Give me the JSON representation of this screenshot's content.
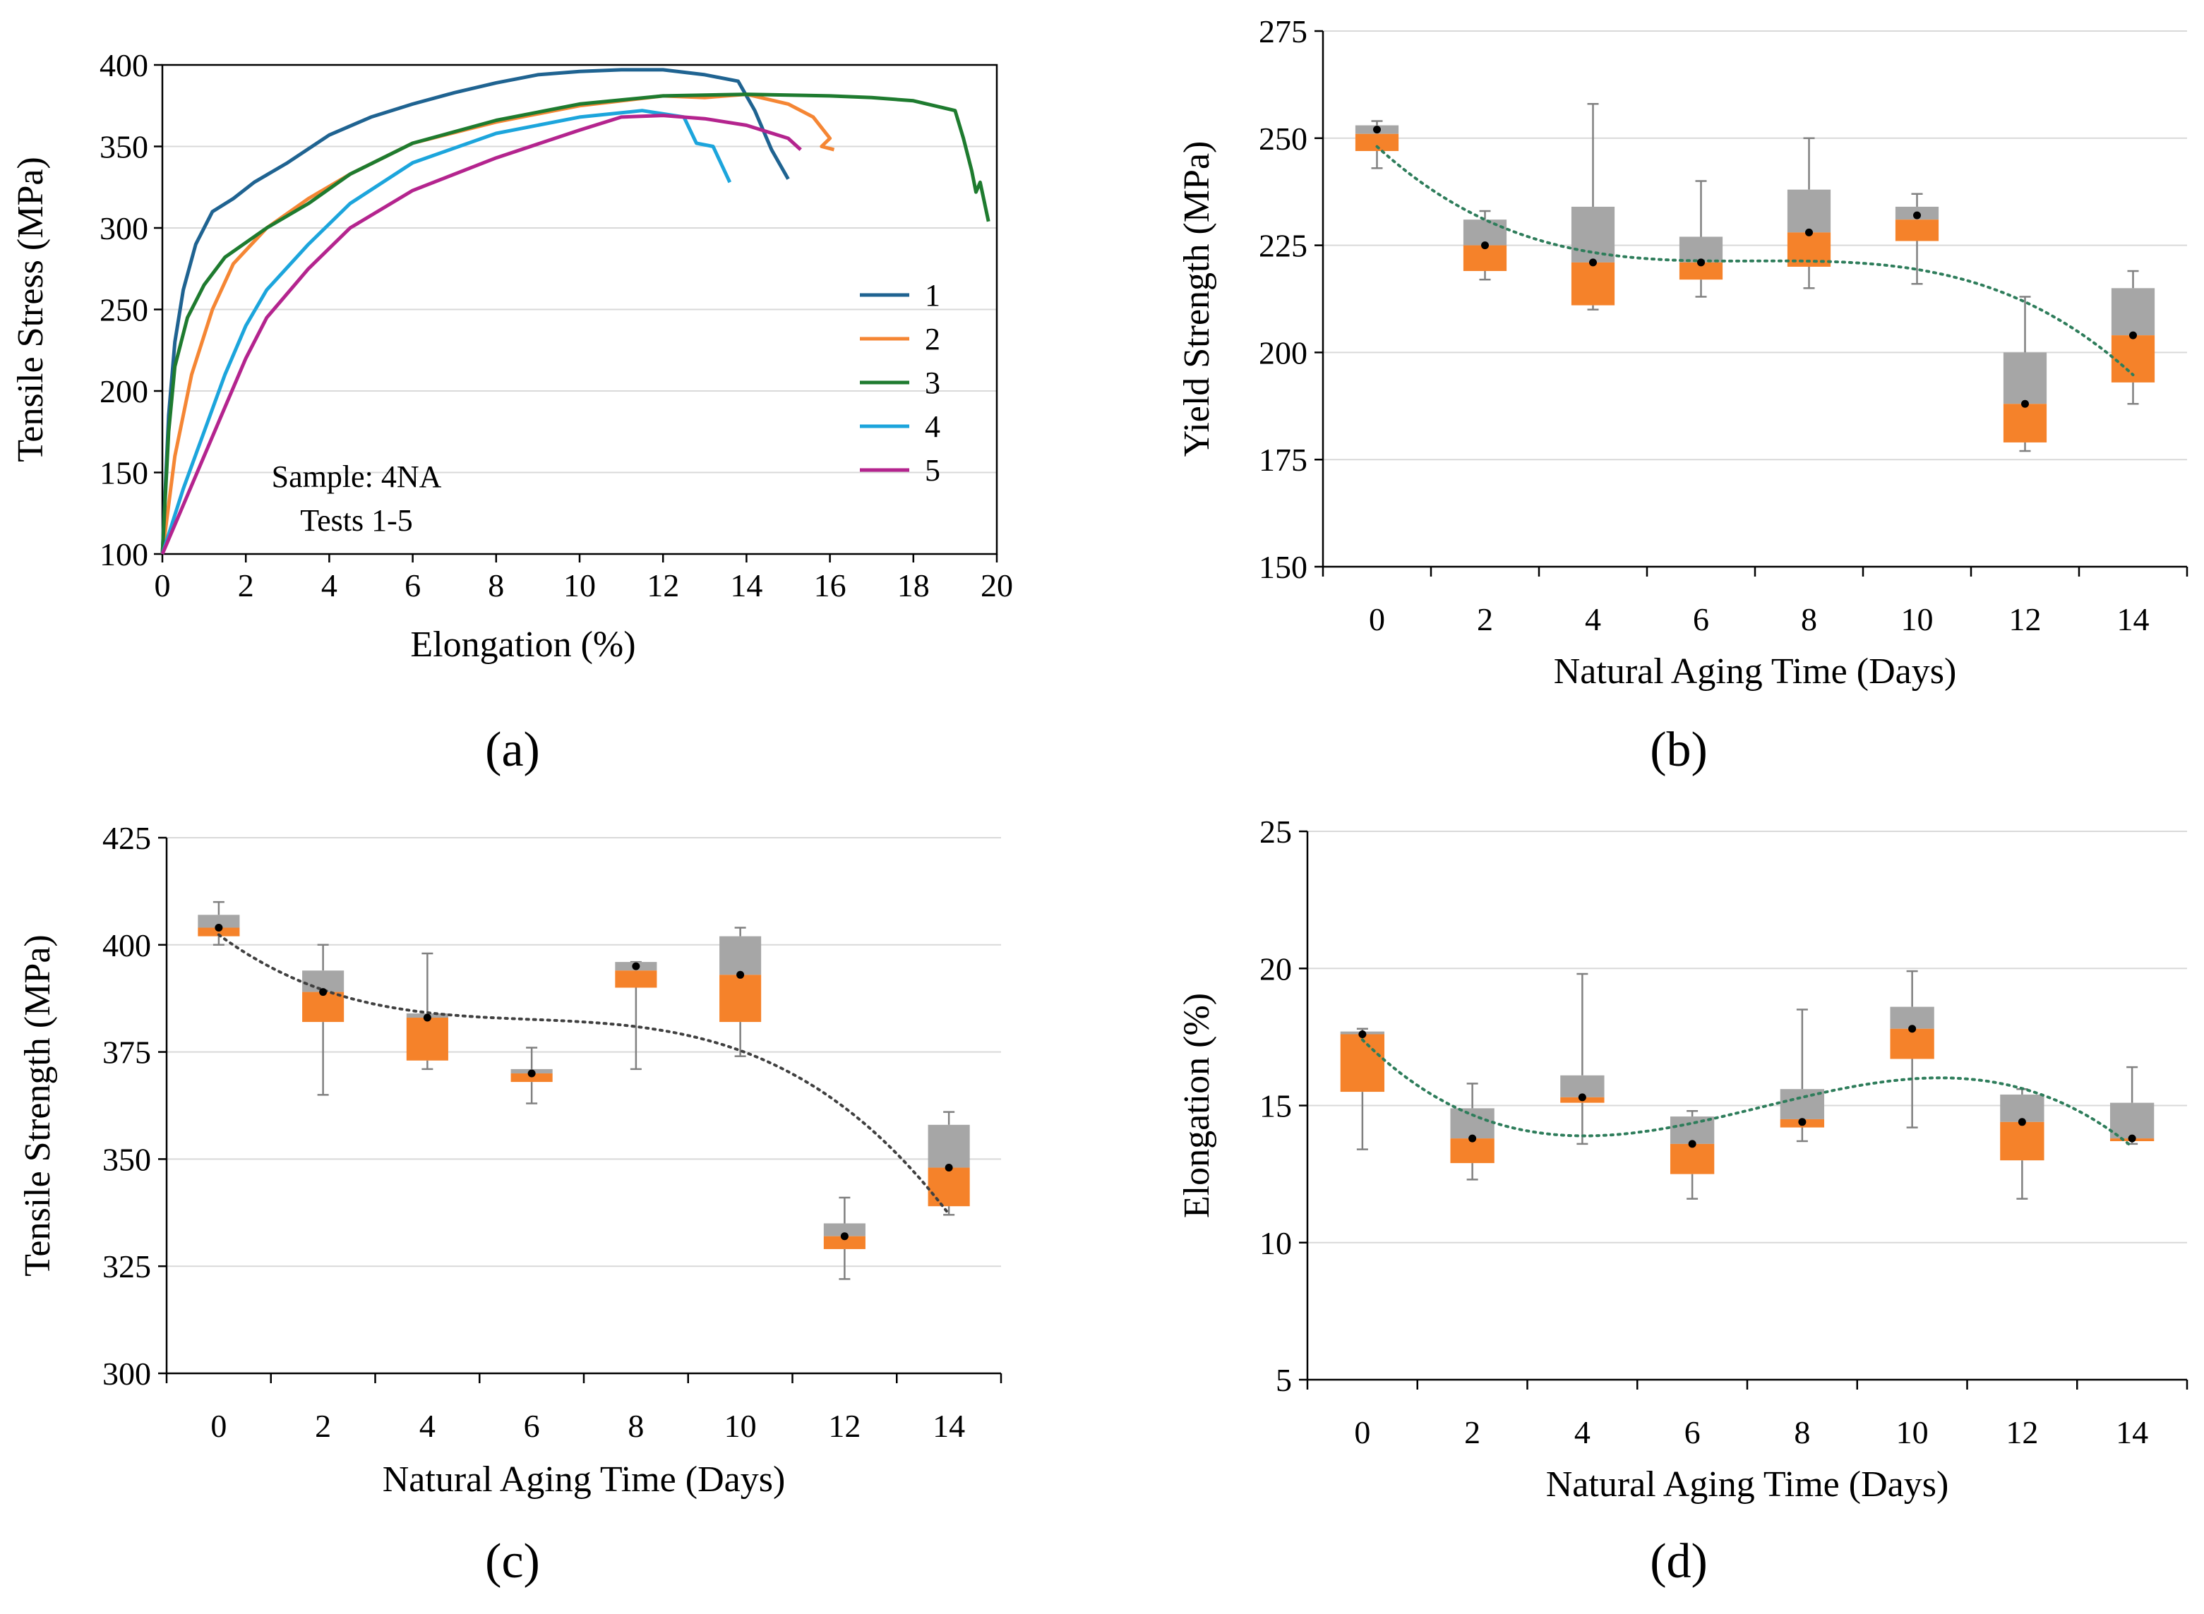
{
  "colors": {
    "s1": "#1F6391",
    "s2": "#F58634",
    "s3": "#1E7B2F",
    "s4": "#1CA5DC",
    "s5": "#B4248E",
    "box_upper": "#A6A6A6",
    "box_lower": "#F5822A",
    "grid": "#D9D9D9",
    "trend_b": "#2E7D5B",
    "trend_c": "#404040",
    "trend_d": "#2E7D5B"
  },
  "chart_data": [
    {
      "id": "a",
      "panel_label": "a",
      "type": "line",
      "xlabel": "Elongation (%)",
      "ylabel": "Tensile Stress (MPa)",
      "xlim": [
        0,
        20
      ],
      "ylim": [
        100,
        400
      ],
      "xticks": [
        0,
        2,
        4,
        6,
        8,
        10,
        12,
        14,
        16,
        18,
        20
      ],
      "yticks": [
        100,
        150,
        200,
        250,
        300,
        350,
        400
      ],
      "annotation": [
        "Sample: 4NA",
        "Tests 1-5"
      ],
      "legend_position": "right-middle",
      "series": [
        {
          "name": "1",
          "color": "#1F6391",
          "points": [
            [
              0,
              100
            ],
            [
              0.15,
              185
            ],
            [
              0.3,
              230
            ],
            [
              0.5,
              262
            ],
            [
              0.8,
              290
            ],
            [
              1.2,
              310
            ],
            [
              1.7,
              318
            ],
            [
              2.2,
              328
            ],
            [
              3,
              340
            ],
            [
              4,
              357
            ],
            [
              5,
              368
            ],
            [
              6,
              376
            ],
            [
              7,
              383
            ],
            [
              8,
              389
            ],
            [
              9,
              394
            ],
            [
              10,
              396
            ],
            [
              11,
              397
            ],
            [
              12,
              397
            ],
            [
              13,
              394
            ],
            [
              13.8,
              390
            ],
            [
              14.2,
              372
            ],
            [
              14.6,
              348
            ],
            [
              15,
              330
            ]
          ]
        },
        {
          "name": "2",
          "color": "#F58634",
          "points": [
            [
              0,
              100
            ],
            [
              0.3,
              160
            ],
            [
              0.7,
              210
            ],
            [
              1.2,
              250
            ],
            [
              1.7,
              278
            ],
            [
              2.5,
              300
            ],
            [
              3.5,
              318
            ],
            [
              4.5,
              333
            ],
            [
              6,
              352
            ],
            [
              8,
              365
            ],
            [
              10,
              375
            ],
            [
              12,
              381
            ],
            [
              13,
              380
            ],
            [
              14,
              382
            ],
            [
              15,
              376
            ],
            [
              15.6,
              368
            ],
            [
              16,
              355
            ],
            [
              15.8,
              350
            ],
            [
              16.1,
              348
            ]
          ]
        },
        {
          "name": "3",
          "color": "#1E7B2F",
          "points": [
            [
              0,
              100
            ],
            [
              0.15,
              175
            ],
            [
              0.3,
              215
            ],
            [
              0.6,
              245
            ],
            [
              1,
              265
            ],
            [
              1.5,
              282
            ],
            [
              2.5,
              300
            ],
            [
              3.5,
              315
            ],
            [
              4.5,
              333
            ],
            [
              6,
              352
            ],
            [
              8,
              366
            ],
            [
              10,
              376
            ],
            [
              12,
              381
            ],
            [
              14,
              382
            ],
            [
              16,
              381
            ],
            [
              17,
              380
            ],
            [
              18,
              378
            ],
            [
              19,
              372
            ],
            [
              19.2,
              355
            ],
            [
              19.4,
              335
            ],
            [
              19.5,
              322
            ],
            [
              19.6,
              328
            ],
            [
              19.8,
              304
            ]
          ]
        },
        {
          "name": "4",
          "color": "#1CA5DC",
          "points": [
            [
              0,
              100
            ],
            [
              0.5,
              140
            ],
            [
              1,
              175
            ],
            [
              1.5,
              210
            ],
            [
              2,
              240
            ],
            [
              2.5,
              262
            ],
            [
              3.5,
              290
            ],
            [
              4.5,
              315
            ],
            [
              6,
              340
            ],
            [
              8,
              358
            ],
            [
              10,
              368
            ],
            [
              11.5,
              372
            ],
            [
              12.5,
              368
            ],
            [
              12.8,
              352
            ],
            [
              13.2,
              350
            ],
            [
              13.6,
              328
            ]
          ]
        },
        {
          "name": "5",
          "color": "#B4248E",
          "points": [
            [
              0,
              100
            ],
            [
              0.5,
              130
            ],
            [
              1,
              160
            ],
            [
              1.5,
              190
            ],
            [
              2,
              220
            ],
            [
              2.5,
              245
            ],
            [
              3.5,
              275
            ],
            [
              4.5,
              300
            ],
            [
              6,
              323
            ],
            [
              8,
              343
            ],
            [
              10,
              360
            ],
            [
              11,
              368
            ],
            [
              12,
              369
            ],
            [
              13,
              367
            ],
            [
              14,
              363
            ],
            [
              15,
              355
            ],
            [
              15.3,
              348
            ]
          ]
        }
      ]
    },
    {
      "id": "b",
      "panel_label": "b",
      "type": "box",
      "xlabel": "Natural Aging Time (Days)",
      "ylabel": "Yield Strength (MPa)",
      "ylim": [
        150,
        275
      ],
      "yticks": [
        150,
        175,
        200,
        225,
        250,
        275
      ],
      "categories": [
        "0",
        "2",
        "4",
        "6",
        "8",
        "10",
        "12",
        "14"
      ],
      "min": [
        243,
        217,
        210,
        213,
        215,
        216,
        177,
        188
      ],
      "q1": [
        247,
        219,
        211,
        217,
        220,
        226,
        179,
        193
      ],
      "median": [
        251,
        225,
        221,
        221,
        228,
        231,
        188,
        204
      ],
      "q3": [
        253,
        231,
        234,
        227,
        238,
        234,
        200,
        215
      ],
      "max": [
        254,
        233,
        258,
        240,
        250,
        237,
        213,
        219
      ],
      "mean": [
        252,
        225,
        221,
        221,
        228,
        232,
        188,
        204
      ],
      "trendline": {
        "style": "dotted",
        "type": "polynomial"
      }
    },
    {
      "id": "c",
      "panel_label": "c",
      "type": "box",
      "xlabel": "Natural Aging Time (Days)",
      "ylabel": "Tensile Strength (MPa)",
      "ylim": [
        300,
        425
      ],
      "yticks": [
        300,
        325,
        350,
        375,
        400,
        425
      ],
      "categories": [
        "0",
        "2",
        "4",
        "6",
        "8",
        "10",
        "12",
        "14"
      ],
      "min": [
        400,
        365,
        371,
        363,
        371,
        374,
        322,
        337
      ],
      "q1": [
        402,
        382,
        373,
        368,
        390,
        382,
        329,
        339
      ],
      "median": [
        404,
        389,
        383,
        370,
        394,
        393,
        332,
        348
      ],
      "q3": [
        407,
        394,
        384,
        371,
        396,
        402,
        335,
        358
      ],
      "max": [
        410,
        400,
        398,
        376,
        396,
        404,
        341,
        361
      ],
      "mean": [
        404,
        389,
        383,
        370,
        395,
        393,
        332,
        348
      ],
      "trendline": {
        "style": "dotted",
        "type": "polynomial"
      }
    },
    {
      "id": "d",
      "panel_label": "d",
      "type": "box",
      "xlabel": "Natural Aging Time (Days)",
      "ylabel": "Elongation (%)",
      "ylim": [
        5,
        25
      ],
      "yticks": [
        5,
        10,
        15,
        20,
        25
      ],
      "categories": [
        "0",
        "2",
        "4",
        "6",
        "8",
        "10",
        "12",
        "14"
      ],
      "min": [
        13.4,
        12.3,
        13.6,
        11.6,
        13.7,
        14.2,
        11.6,
        13.6
      ],
      "q1": [
        15.5,
        12.9,
        15.1,
        12.5,
        14.2,
        16.7,
        13.0,
        13.7
      ],
      "median": [
        17.6,
        13.8,
        15.3,
        13.6,
        14.5,
        17.8,
        14.4,
        13.8
      ],
      "q3": [
        17.7,
        14.9,
        16.1,
        14.6,
        15.6,
        18.6,
        15.4,
        15.1
      ],
      "max": [
        17.8,
        15.8,
        19.8,
        14.8,
        18.5,
        19.9,
        15.6,
        16.4
      ],
      "mean": [
        17.6,
        13.8,
        15.3,
        13.6,
        14.4,
        17.8,
        14.4,
        13.8
      ],
      "trendline": {
        "style": "dotted",
        "type": "polynomial"
      }
    }
  ]
}
